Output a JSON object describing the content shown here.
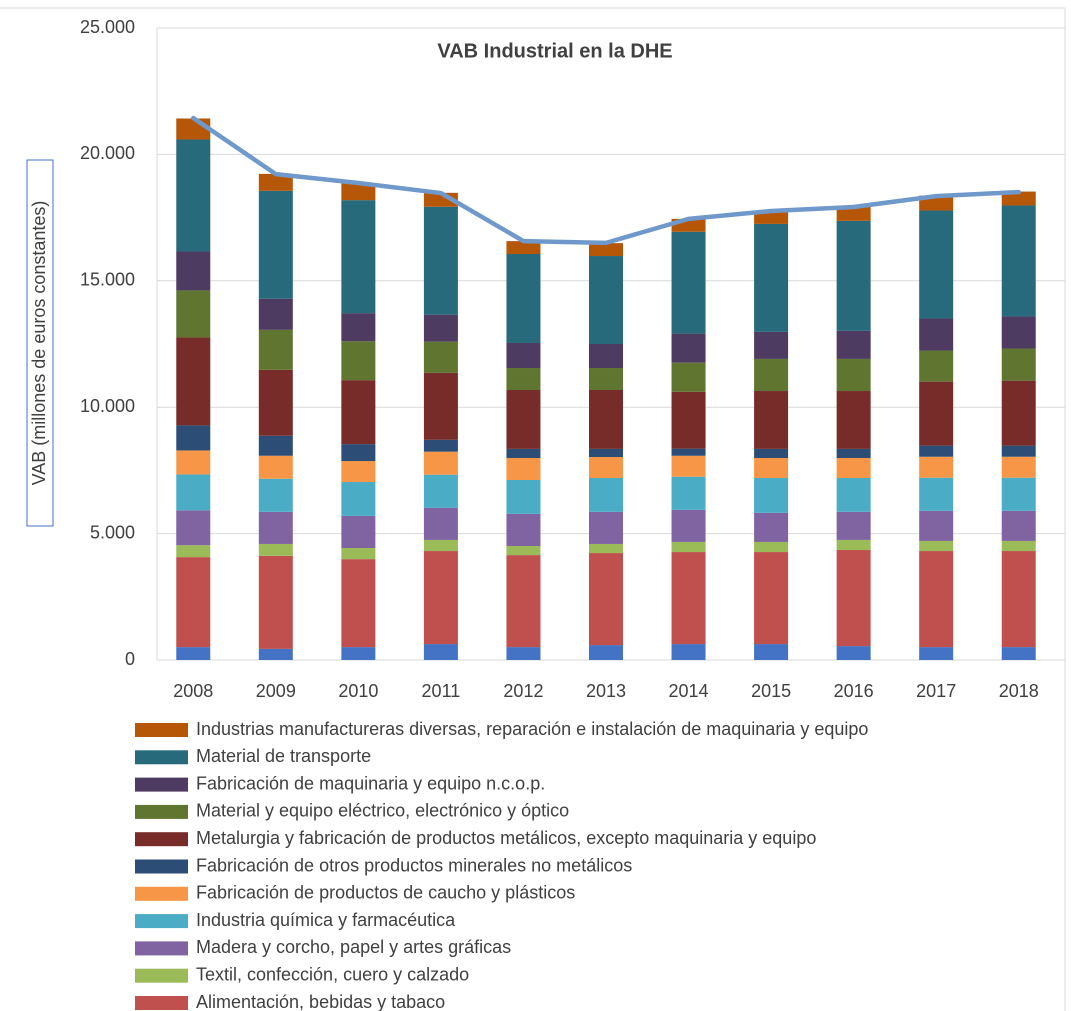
{
  "chart_data": {
    "type": "bar",
    "stacked": true,
    "title": "VAB Industrial en la DHE",
    "y_label": "VAB (millones de euros constantes)",
    "categories": [
      "2008",
      "2009",
      "2010",
      "2011",
      "2012",
      "2013",
      "2014",
      "2015",
      "2016",
      "2017",
      "2018"
    ],
    "ylim": [
      0,
      25000
    ],
    "yticks": [
      0,
      {
        "value": 5000,
        "label": "5.000"
      },
      {
        "value": 10000,
        "label": "10.000"
      },
      {
        "value": 15000,
        "label": "15.000"
      },
      {
        "value": 20000,
        "label": "20.000"
      },
      {
        "value": 25000,
        "label": "25.000"
      }
    ],
    "grid": true,
    "series": [
      {
        "color": "#4472c4",
        "values": [
          510,
          440,
          510,
          630,
          510,
          590,
          630,
          630,
          550,
          510,
          510
        ]
      },
      {
        "name": "Alimentación, bebidas y tabaco",
        "color": "#c0504d",
        "values": [
          3560,
          3680,
          3480,
          3680,
          3640,
          3640,
          3640,
          3640,
          3800,
          3800,
          3800
        ]
      },
      {
        "name": "Textil, confección, cuero y calzado",
        "color": "#9bbb59",
        "values": [
          470,
          470,
          440,
          440,
          360,
          360,
          400,
          400,
          400,
          400,
          400
        ]
      },
      {
        "name": "Madera y corcho, papel y artes gráficas",
        "color": "#8064a2",
        "values": [
          1380,
          1270,
          1270,
          1270,
          1270,
          1270,
          1270,
          1150,
          1110,
          1190,
          1190
        ]
      },
      {
        "name": "Industria química y farmacéutica",
        "color": "#4bacc6",
        "values": [
          1420,
          1310,
          1340,
          1310,
          1340,
          1340,
          1310,
          1380,
          1340,
          1310,
          1310
        ]
      },
      {
        "name": "Fabricación de productos de caucho y plásticos",
        "color": "#f79646",
        "values": [
          950,
          910,
          830,
          910,
          870,
          830,
          830,
          790,
          790,
          830,
          830
        ]
      },
      {
        "name": "Fabricación de otros productos minerales no metálicos",
        "color": "#2c4d75",
        "values": [
          990,
          790,
          670,
          470,
          360,
          320,
          280,
          360,
          360,
          440,
          440
        ]
      },
      {
        "name": "Metalurgia y fabricación de productos metálicos, excepto maquinaria y equipo",
        "color": "#772c2a",
        "values": [
          3480,
          2610,
          2530,
          2650,
          2330,
          2330,
          2250,
          2290,
          2290,
          2530,
          2570
        ]
      },
      {
        "name": "Material y equipo eléctrico, electrónico y óptico",
        "color": "#5f7530",
        "values": [
          1860,
          1580,
          1540,
          1230,
          870,
          870,
          1150,
          1270,
          1270,
          1230,
          1270
        ]
      },
      {
        "name": "Fabricación de maquinaria y equipo n.c.o.p.",
        "color": "#4d3b62",
        "values": [
          1540,
          1230,
          1110,
          1070,
          990,
          950,
          1150,
          1070,
          1110,
          1270,
          1270
        ]
      },
      {
        "name": "Material de transporte",
        "color": "#276a7c",
        "values": [
          4430,
          4270,
          4470,
          4270,
          3520,
          3480,
          4030,
          4270,
          4350,
          4270,
          4390
        ]
      },
      {
        "name": "Industrias manufactureras diversas, reparación e instalación de maquinaria y equipo",
        "color": "#b65708",
        "values": [
          830,
          670,
          670,
          550,
          510,
          510,
          510,
          510,
          550,
          590,
          550
        ]
      },
      {
        "type": "line",
        "color": "#7099cb",
        "values": [
          21440,
          19220,
          18870,
          18470,
          16570,
          16500,
          17450,
          17760,
          17920,
          18350,
          18510
        ]
      }
    ]
  }
}
